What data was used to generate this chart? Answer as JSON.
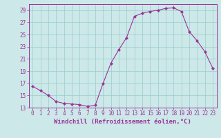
{
  "x": [
    0,
    1,
    2,
    3,
    4,
    5,
    6,
    7,
    8,
    9,
    10,
    11,
    12,
    13,
    14,
    15,
    16,
    17,
    18,
    19,
    20,
    21,
    22,
    23
  ],
  "y": [
    16.5,
    15.8,
    15.0,
    14.0,
    13.7,
    13.6,
    13.5,
    13.2,
    13.4,
    17.0,
    20.3,
    22.5,
    24.5,
    28.0,
    28.5,
    28.8,
    29.0,
    29.3,
    29.4,
    28.8,
    25.5,
    24.0,
    22.2,
    19.5
  ],
  "line_color": "#993399",
  "marker": "D",
  "marker_size": 2.0,
  "bg_color": "#cce8e8",
  "grid_color": "#99cccc",
  "axis_color": "#993399",
  "xlabel": "Windchill (Refroidissement éolien,°C)",
  "ylim": [
    13,
    30
  ],
  "xlim": [
    -0.5,
    23.5
  ],
  "yticks": [
    13,
    15,
    17,
    19,
    21,
    23,
    25,
    27,
    29
  ],
  "xticks": [
    0,
    1,
    2,
    3,
    4,
    5,
    6,
    7,
    8,
    9,
    10,
    11,
    12,
    13,
    14,
    15,
    16,
    17,
    18,
    19,
    20,
    21,
    22,
    23
  ],
  "tick_fontsize": 5.5,
  "label_fontsize": 6.5
}
